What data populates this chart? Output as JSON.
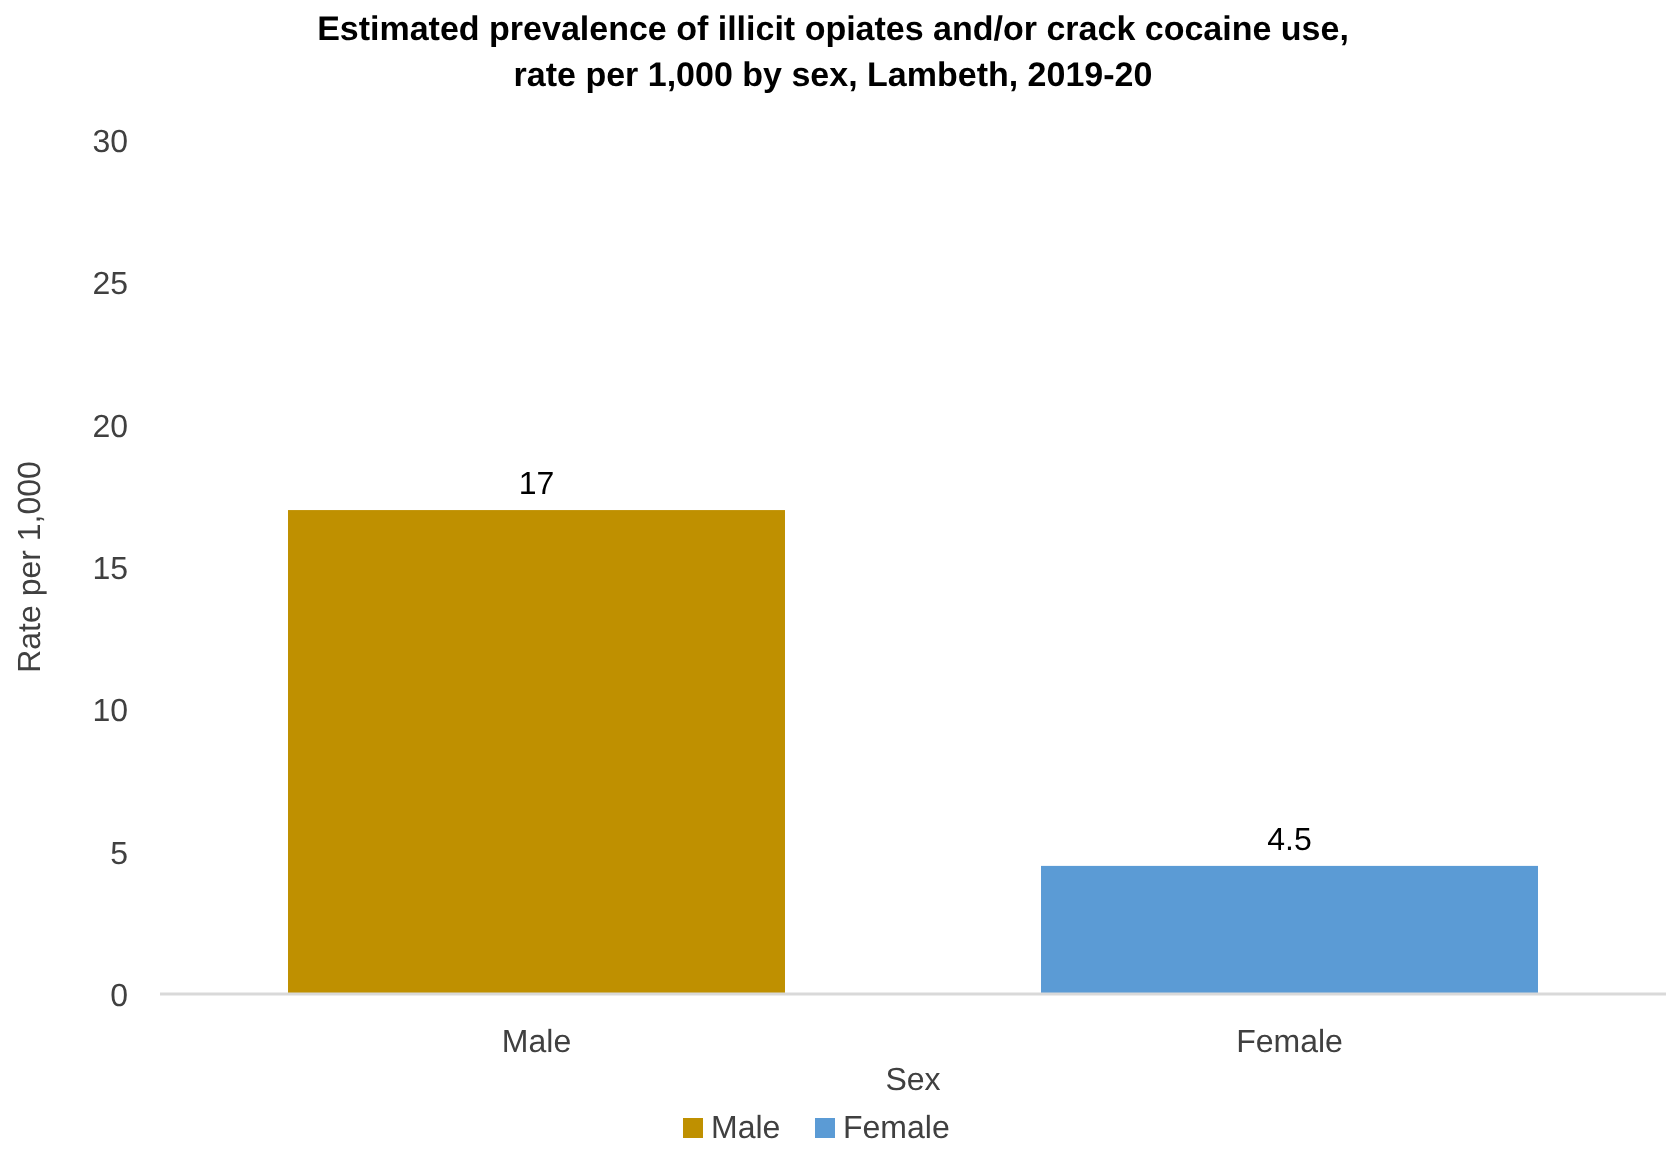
{
  "chart_data": {
    "type": "bar",
    "title": "Estimated prevalence of illicit opiates and/or crack cocaine use,\nrate per 1,000 by sex, Lambeth, 2019-20",
    "xlabel": "Sex",
    "ylabel": "Rate per 1,000",
    "categories": [
      "Male",
      "Female"
    ],
    "stacked": true,
    "series": [
      {
        "name": "Male",
        "color": "#bf9000",
        "values": [
          17,
          null
        ]
      },
      {
        "name": "Female",
        "color": "#5b9bd5",
        "values": [
          null,
          4.5
        ]
      }
    ],
    "ylim": [
      0,
      30
    ],
    "yticks": [
      0,
      5,
      10,
      15,
      20,
      25,
      30
    ],
    "grid": false,
    "data_labels": true,
    "legend": "bottom"
  }
}
